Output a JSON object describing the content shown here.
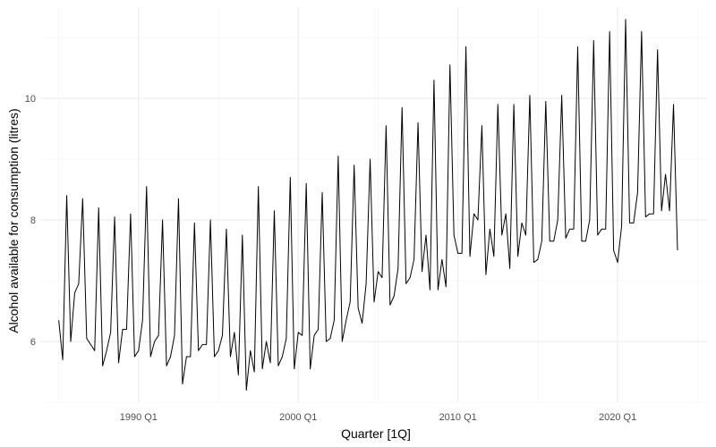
{
  "chart_data": {
    "type": "line",
    "title": "",
    "xlabel": "Quarter [1Q]",
    "ylabel": "Alcohol available for consumption (litres)",
    "xlim": [
      1983.9,
      2025.6
    ],
    "ylim": [
      5.0,
      11.5
    ],
    "x_ticks": [
      {
        "value": 1990,
        "label": "1990 Q1"
      },
      {
        "value": 2000,
        "label": "2000 Q1"
      },
      {
        "value": 2010,
        "label": "2010 Q1"
      },
      {
        "value": 2020,
        "label": "2020 Q1"
      }
    ],
    "y_ticks": [
      {
        "value": 6,
        "label": "6"
      },
      {
        "value": 8,
        "label": "8"
      },
      {
        "value": 10,
        "label": "10"
      }
    ],
    "grid": true,
    "series": [
      {
        "name": "Alcohol",
        "color": "#000000",
        "start": 1985.0,
        "step": 0.25,
        "values": [
          6.35,
          5.7,
          8.4,
          6.0,
          6.8,
          6.95,
          8.35,
          6.05,
          5.95,
          5.85,
          8.2,
          5.6,
          5.85,
          6.15,
          8.05,
          5.65,
          6.2,
          6.2,
          8.1,
          5.75,
          5.85,
          6.35,
          8.55,
          5.75,
          6.0,
          6.1,
          8.0,
          5.6,
          5.75,
          6.1,
          8.35,
          5.3,
          5.75,
          5.75,
          7.95,
          5.85,
          5.95,
          5.95,
          8.0,
          5.75,
          5.85,
          6.1,
          7.85,
          5.75,
          6.15,
          5.45,
          7.75,
          5.2,
          5.85,
          5.5,
          8.55,
          5.55,
          6.0,
          5.65,
          8.15,
          5.6,
          5.75,
          6.05,
          8.7,
          5.55,
          6.15,
          6.1,
          8.6,
          5.55,
          6.1,
          6.2,
          8.45,
          6.0,
          6.05,
          6.35,
          9.05,
          6.0,
          6.35,
          6.65,
          8.9,
          6.55,
          6.3,
          6.95,
          9.0,
          6.65,
          7.15,
          7.05,
          9.55,
          6.6,
          6.75,
          7.2,
          9.85,
          6.95,
          7.05,
          7.35,
          9.6,
          7.15,
          7.75,
          6.85,
          10.3,
          6.85,
          7.35,
          6.9,
          10.55,
          7.75,
          7.45,
          7.45,
          10.85,
          7.4,
          8.1,
          8.0,
          9.55,
          7.1,
          7.85,
          7.4,
          9.9,
          7.75,
          8.1,
          7.2,
          9.9,
          7.4,
          7.95,
          7.75,
          10.05,
          7.3,
          7.35,
          7.65,
          9.95,
          7.65,
          7.65,
          8.0,
          10.05,
          7.7,
          7.85,
          7.85,
          10.85,
          7.65,
          7.65,
          8.0,
          10.95,
          7.75,
          7.85,
          7.85,
          11.1,
          7.5,
          7.3,
          7.9,
          11.3,
          7.95,
          7.95,
          8.45,
          11.1,
          8.05,
          8.1,
          8.1,
          10.8,
          8.15,
          8.75,
          8.15,
          9.9,
          7.5
        ]
      }
    ]
  }
}
